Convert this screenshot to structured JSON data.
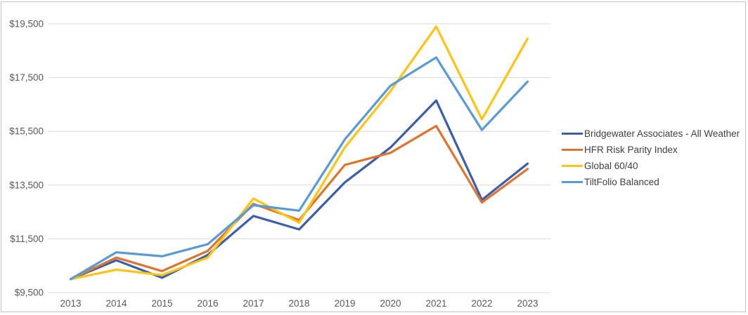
{
  "chart_data": {
    "type": "line",
    "title": "",
    "xlabel": "",
    "ylabel": "",
    "categories": [
      "2013",
      "2014",
      "2015",
      "2016",
      "2017",
      "2018",
      "2019",
      "2020",
      "2021",
      "2022",
      "2023"
    ],
    "series": [
      {
        "name": "Bridgewater Associates - All Weather",
        "color": "#3D5FA9",
        "values": [
          10000,
          10700,
          10050,
          10900,
          12350,
          11850,
          13600,
          14900,
          16650,
          12950,
          14300
        ]
      },
      {
        "name": "HFR Risk Parity Index",
        "color": "#DC7530",
        "values": [
          10000,
          10800,
          10300,
          11050,
          12800,
          12200,
          14250,
          14700,
          15700,
          12850,
          14100
        ]
      },
      {
        "name": "Global 60/40",
        "color": "#FFC415",
        "values": [
          10000,
          10350,
          10150,
          10800,
          13000,
          12100,
          14900,
          17000,
          19400,
          15950,
          18950
        ]
      },
      {
        "name": "TiltFolio Balanced",
        "color": "#5B9BD5",
        "values": [
          10000,
          11000,
          10850,
          11300,
          12750,
          12550,
          15200,
          17200,
          18250,
          15550,
          17350
        ]
      }
    ],
    "y_ticks": [
      9500,
      11500,
      13500,
      15500,
      17500,
      19500
    ],
    "y_tick_labels": [
      "$9,500",
      "$11,500",
      "$13,500",
      "$15,500",
      "$17,500",
      "$19,500"
    ],
    "ylim": [
      9500,
      19500
    ],
    "grid": true,
    "legend_position": "right"
  },
  "colors": {
    "background": "#FFFFFF",
    "frame_border": "#C3C3C3",
    "gridline": "#D9D9D9",
    "axis_text": "#595959",
    "legend_text": "#404040"
  }
}
